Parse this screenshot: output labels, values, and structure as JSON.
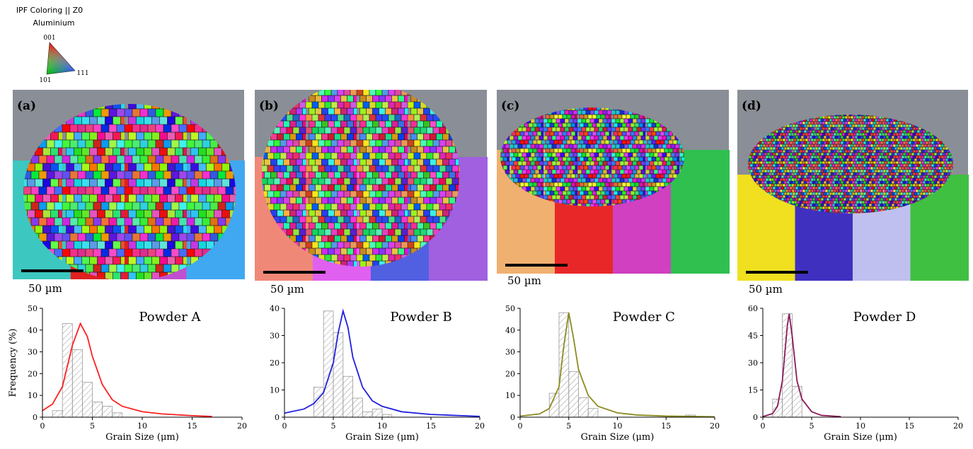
{
  "ipf_legend": {
    "title": "IPF Coloring || Z0",
    "phase": "Aluminium",
    "corners": [
      "001",
      "101",
      "111"
    ]
  },
  "panels": [
    {
      "label": "(a)",
      "scale_bar": "50 µm"
    },
    {
      "label": "(b)",
      "scale_bar": "50 µm"
    },
    {
      "label": "(c)",
      "scale_bar": "50 µm"
    },
    {
      "label": "(d)",
      "scale_bar": "50 µm"
    }
  ],
  "chart_data": [
    {
      "type": "histogram",
      "title": "Powder A",
      "xlabel": "Grain Size (μm)",
      "ylabel": "Frequency (%)",
      "bins": [
        1,
        2,
        3,
        4,
        5,
        6,
        7,
        8
      ],
      "counts": [
        3,
        43,
        31,
        16,
        7,
        5,
        2
      ],
      "curve": {
        "color": "#ff2020",
        "x": [
          0,
          1,
          2,
          3,
          3.8,
          4.5,
          5,
          6,
          7,
          8,
          10,
          12,
          15,
          17
        ],
        "values": [
          3,
          6,
          14,
          33,
          43,
          37,
          28,
          15,
          8,
          5,
          2.5,
          1.5,
          0.7,
          0.3
        ]
      },
      "xlim": [
        0,
        20
      ],
      "ylim": [
        0,
        50
      ],
      "xticks": [
        0,
        5,
        10,
        15,
        20
      ],
      "yticks": [
        0,
        10,
        20,
        30,
        40,
        50
      ]
    },
    {
      "type": "histogram",
      "title": "Powder B",
      "xlabel": "Grain Size (μm)",
      "bins": [
        3,
        4,
        5,
        6,
        7,
        8,
        9,
        10,
        11
      ],
      "counts": [
        11,
        39,
        31,
        15,
        7,
        2,
        3,
        1
      ],
      "curve": {
        "color": "#2020e0",
        "x": [
          0,
          2,
          3,
          4,
          5,
          5.5,
          6,
          6.5,
          7,
          8,
          9,
          10,
          12,
          15,
          20
        ],
        "values": [
          1.5,
          3,
          5,
          9,
          20,
          31,
          39,
          33,
          22,
          11,
          6,
          4,
          2,
          1,
          0.3
        ]
      },
      "xlim": [
        0,
        20
      ],
      "ylim": [
        0,
        40
      ],
      "xticks": [
        0,
        5,
        10,
        15,
        20
      ],
      "yticks": [
        0,
        10,
        20,
        30,
        40
      ]
    },
    {
      "type": "histogram",
      "title": "Powder C",
      "xlabel": "Grain Size (μm)",
      "bins": [
        3,
        4,
        5,
        6,
        7,
        8,
        9,
        10,
        11,
        12,
        13,
        14,
        15,
        16,
        17,
        18
      ],
      "counts": [
        11,
        48,
        21,
        9,
        4,
        0,
        0,
        0,
        0,
        0,
        0,
        0,
        0,
        0,
        1
      ],
      "curve": {
        "color": "#8b8b20",
        "x": [
          0,
          2,
          3,
          4,
          4.5,
          5,
          5.5,
          6,
          7,
          8,
          10,
          12,
          15,
          20
        ],
        "values": [
          0.5,
          1.5,
          4,
          14,
          33,
          48,
          36,
          22,
          10,
          5,
          2,
          1,
          0.5,
          0.2
        ]
      },
      "xlim": [
        0,
        20
      ],
      "ylim": [
        0,
        50
      ],
      "xticks": [
        0,
        5,
        10,
        15,
        20
      ],
      "yticks": [
        0,
        10,
        20,
        30,
        40,
        50
      ]
    },
    {
      "type": "histogram",
      "title": "Powder D",
      "xlabel": "Grain Size (μm)",
      "bins": [
        1,
        2,
        3,
        4
      ],
      "counts": [
        10,
        57,
        17
      ],
      "curve": {
        "color": "#8b1a5a",
        "x": [
          0,
          1,
          1.5,
          2,
          2.5,
          2.7,
          3,
          3.5,
          4,
          5,
          6,
          8
        ],
        "values": [
          0.3,
          2,
          6,
          20,
          50,
          57,
          45,
          20,
          10,
          3,
          1,
          0.3
        ]
      },
      "xlim": [
        0,
        20
      ],
      "ylim": [
        0,
        60
      ],
      "xticks": [
        0,
        5,
        10,
        15,
        20
      ],
      "yticks": [
        0,
        15,
        30,
        45,
        60
      ]
    }
  ]
}
